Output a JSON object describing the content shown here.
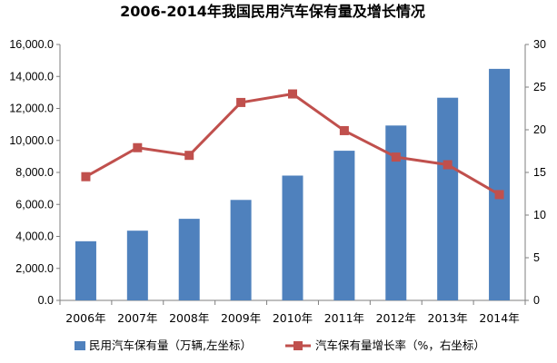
{
  "chart_data": {
    "type": "bar+line",
    "title": "2006-2014年我国民用汽车保有量及增长情况",
    "categories": [
      "2006年",
      "2007年",
      "2008年",
      "2009年",
      "2010年",
      "2011年",
      "2012年",
      "2013年",
      "2014年"
    ],
    "series": [
      {
        "name": "民用汽车保有量（万辆,左坐标）",
        "type": "bar",
        "axis": "left",
        "color": "#4f81bd",
        "values": [
          3697,
          4358,
          5100,
          6281,
          7802,
          9356,
          10933,
          12670,
          14475
        ]
      },
      {
        "name": "汽车保有量增长率（%，右坐标）",
        "type": "line",
        "axis": "right",
        "color": "#c0504d",
        "values": [
          14.5,
          17.9,
          17.0,
          23.2,
          24.2,
          19.9,
          16.8,
          15.9,
          12.4
        ]
      }
    ],
    "left_axis": {
      "ylim": [
        0,
        16000
      ],
      "ticks": [
        "0.0",
        "2,000.0",
        "4,000.0",
        "6,000.0",
        "8,000.0",
        "10,000.0",
        "12,000.0",
        "14,000.0",
        "16,000.0"
      ]
    },
    "right_axis": {
      "ylim": [
        0,
        30
      ],
      "ticks": [
        "0",
        "5",
        "10",
        "15",
        "20",
        "25",
        "30"
      ]
    },
    "grid": false,
    "legend_position": "bottom"
  }
}
